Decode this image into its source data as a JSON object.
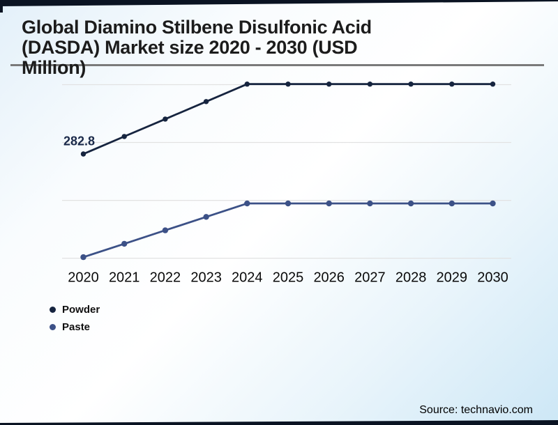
{
  "header": {
    "title_lines": [
      "Global Diamino Stilbene Disulfonic Acid",
      "(DASDA) Market size 2020 - 2030 (USD",
      "Million)"
    ]
  },
  "footer": {
    "source": "Source: technavio.com"
  },
  "colors": {
    "powder": "#16243f",
    "paste": "#3c5187",
    "bar": "#0a1322",
    "divider": "#7a7a7a",
    "gridline": "#e2e2e2",
    "data_label": "#1b2a4a",
    "axis_text": "#0a0a0a"
  },
  "legend": {
    "items": [
      {
        "label": "Powder",
        "color": "#16243f"
      },
      {
        "label": "Paste",
        "color": "#3c5187"
      }
    ]
  },
  "chart_data": {
    "type": "line",
    "title": "Global Diamino Stilbene Disulfonic Acid (DASDA) Market size 2020 - 2030 (USD Million)",
    "categories": [
      "2020",
      "2021",
      "2022",
      "2023",
      "2024",
      "2025",
      "2026",
      "2027",
      "2028",
      "2029",
      "2030"
    ],
    "series": [
      {
        "name": "Powder",
        "color": "#16243f",
        "values": [
          282.8,
          316.6,
          350.4,
          384.2,
          418,
          418,
          418,
          418,
          418,
          418,
          418
        ]
      },
      {
        "name": "Paste",
        "color": "#3c5187",
        "values": [
          83,
          109,
          135,
          161,
          187,
          187,
          187,
          187,
          187,
          187,
          187
        ]
      }
    ],
    "data_labels": [
      {
        "series": "Powder",
        "category": "2020",
        "text": "282.8"
      }
    ],
    "xlabel": "",
    "ylabel": "USD Million",
    "ylim": [
      50,
      450
    ],
    "grid": true,
    "gridline_values": [
      81,
      193,
      305,
      417
    ],
    "legend_position": "bottom-left",
    "marker": "circle"
  }
}
